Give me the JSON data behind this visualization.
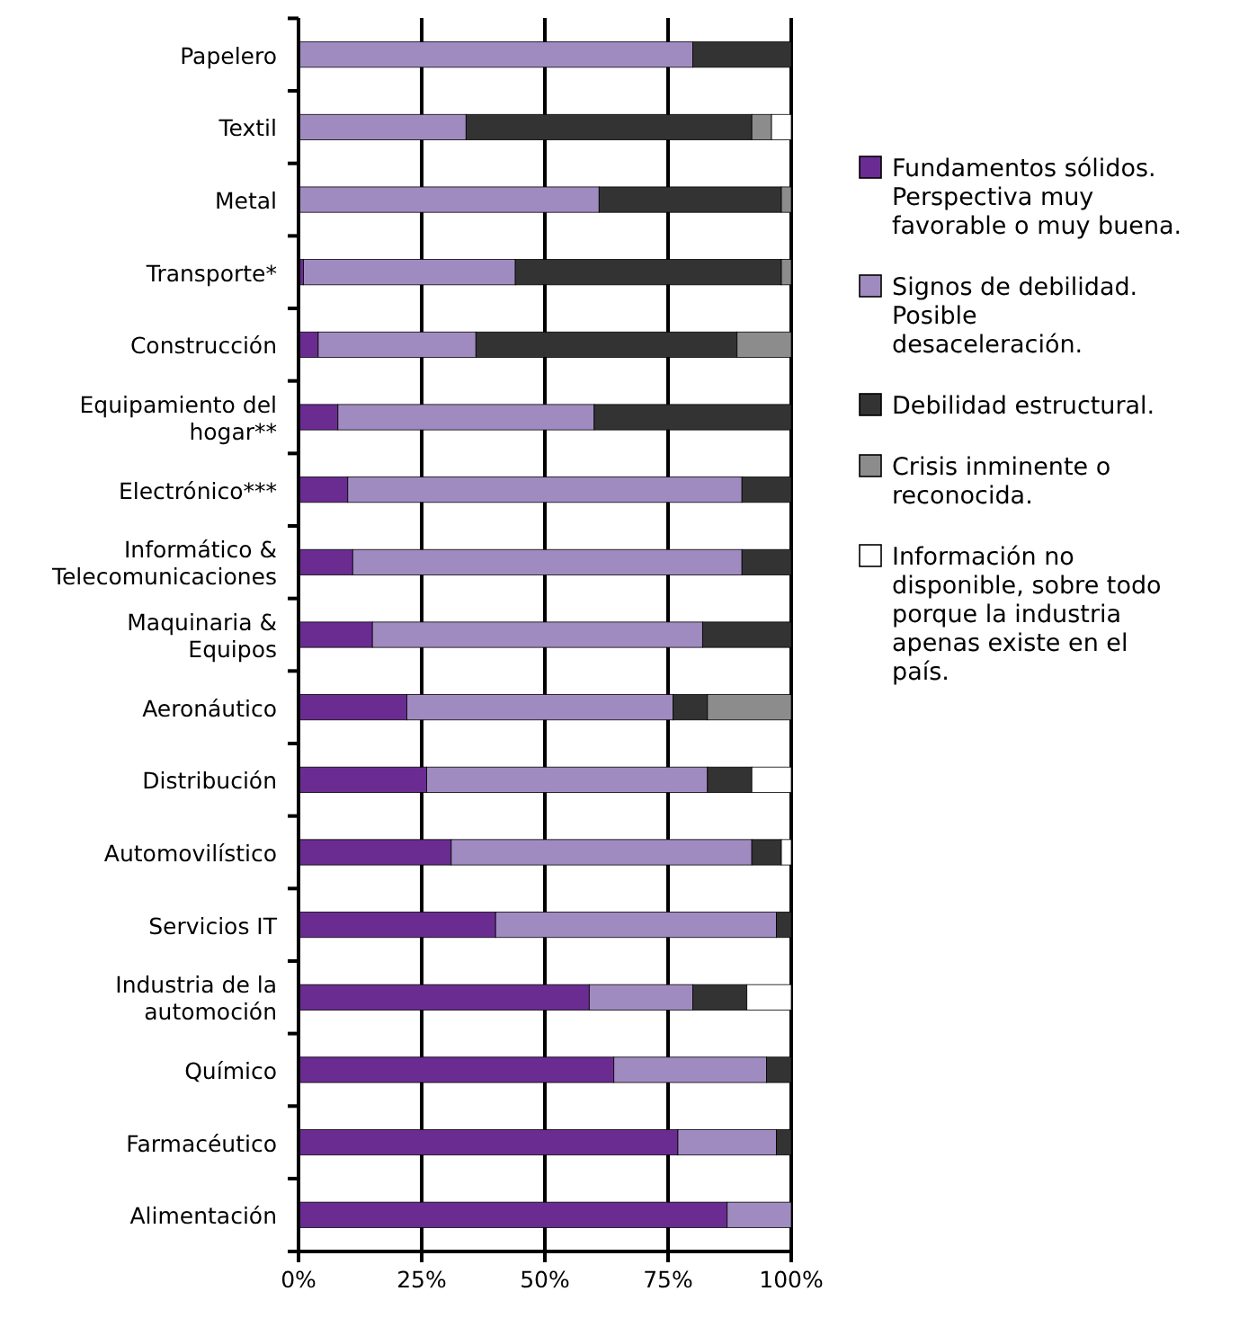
{
  "chart_data": {
    "type": "bar",
    "orientation": "horizontal",
    "stacked": true,
    "categories": [
      "Papelero",
      "Textil",
      "Metal",
      "Transporte*",
      "Construcción",
      "Equipamiento del hogar**",
      "Electrónico***",
      "Informático & Telecomunicaciones",
      "Maquinaria & Equipos",
      "Aeronáutico",
      "Distribución",
      "Automovilístico",
      "Servicios IT",
      "Industria de la automoción",
      "Químico",
      "Farmacéutico",
      "Alimentación"
    ],
    "series": [
      {
        "name": "Fundamentos sólidos. Perspectiva muy favorable o muy buena.",
        "color": "#6a2c91",
        "values": [
          0,
          0,
          0,
          1,
          4,
          8,
          10,
          11,
          15,
          22,
          26,
          31,
          40,
          59,
          64,
          77,
          87
        ]
      },
      {
        "name": "Signos de debilidad. Posible desaceleración.",
        "color": "#a08bc1",
        "values": [
          80,
          34,
          61,
          43,
          32,
          52,
          80,
          79,
          67,
          54,
          57,
          61,
          57,
          21,
          31,
          20,
          13
        ]
      },
      {
        "name": "Debilidad estructural.",
        "color": "#333333",
        "values": [
          20,
          58,
          37,
          54,
          53,
          40,
          10,
          10,
          18,
          7,
          9,
          6,
          3,
          11,
          5,
          3,
          0
        ]
      },
      {
        "name": "Crisis inminente o reconocida.",
        "color": "#8c8c8c",
        "values": [
          0,
          4,
          2,
          2,
          11,
          0,
          0,
          0,
          0,
          17,
          0,
          0,
          0,
          0,
          0,
          0,
          0
        ]
      },
      {
        "name": "Información no disponible, sobre todo porque la industria apenas existe en el país.",
        "color": "#ffffff",
        "values": [
          0,
          4,
          0,
          0,
          0,
          0,
          0,
          0,
          0,
          0,
          8,
          2,
          0,
          9,
          0,
          0,
          0
        ]
      }
    ],
    "xlim": [
      0,
      100
    ],
    "xticks": [
      {
        "value": 0,
        "label": "0%"
      },
      {
        "value": 25,
        "label": "25%"
      },
      {
        "value": 50,
        "label": "50%"
      },
      {
        "value": 75,
        "label": "75%"
      },
      {
        "value": 100,
        "label": "100%"
      }
    ],
    "grid": "x",
    "legend": "right"
  }
}
